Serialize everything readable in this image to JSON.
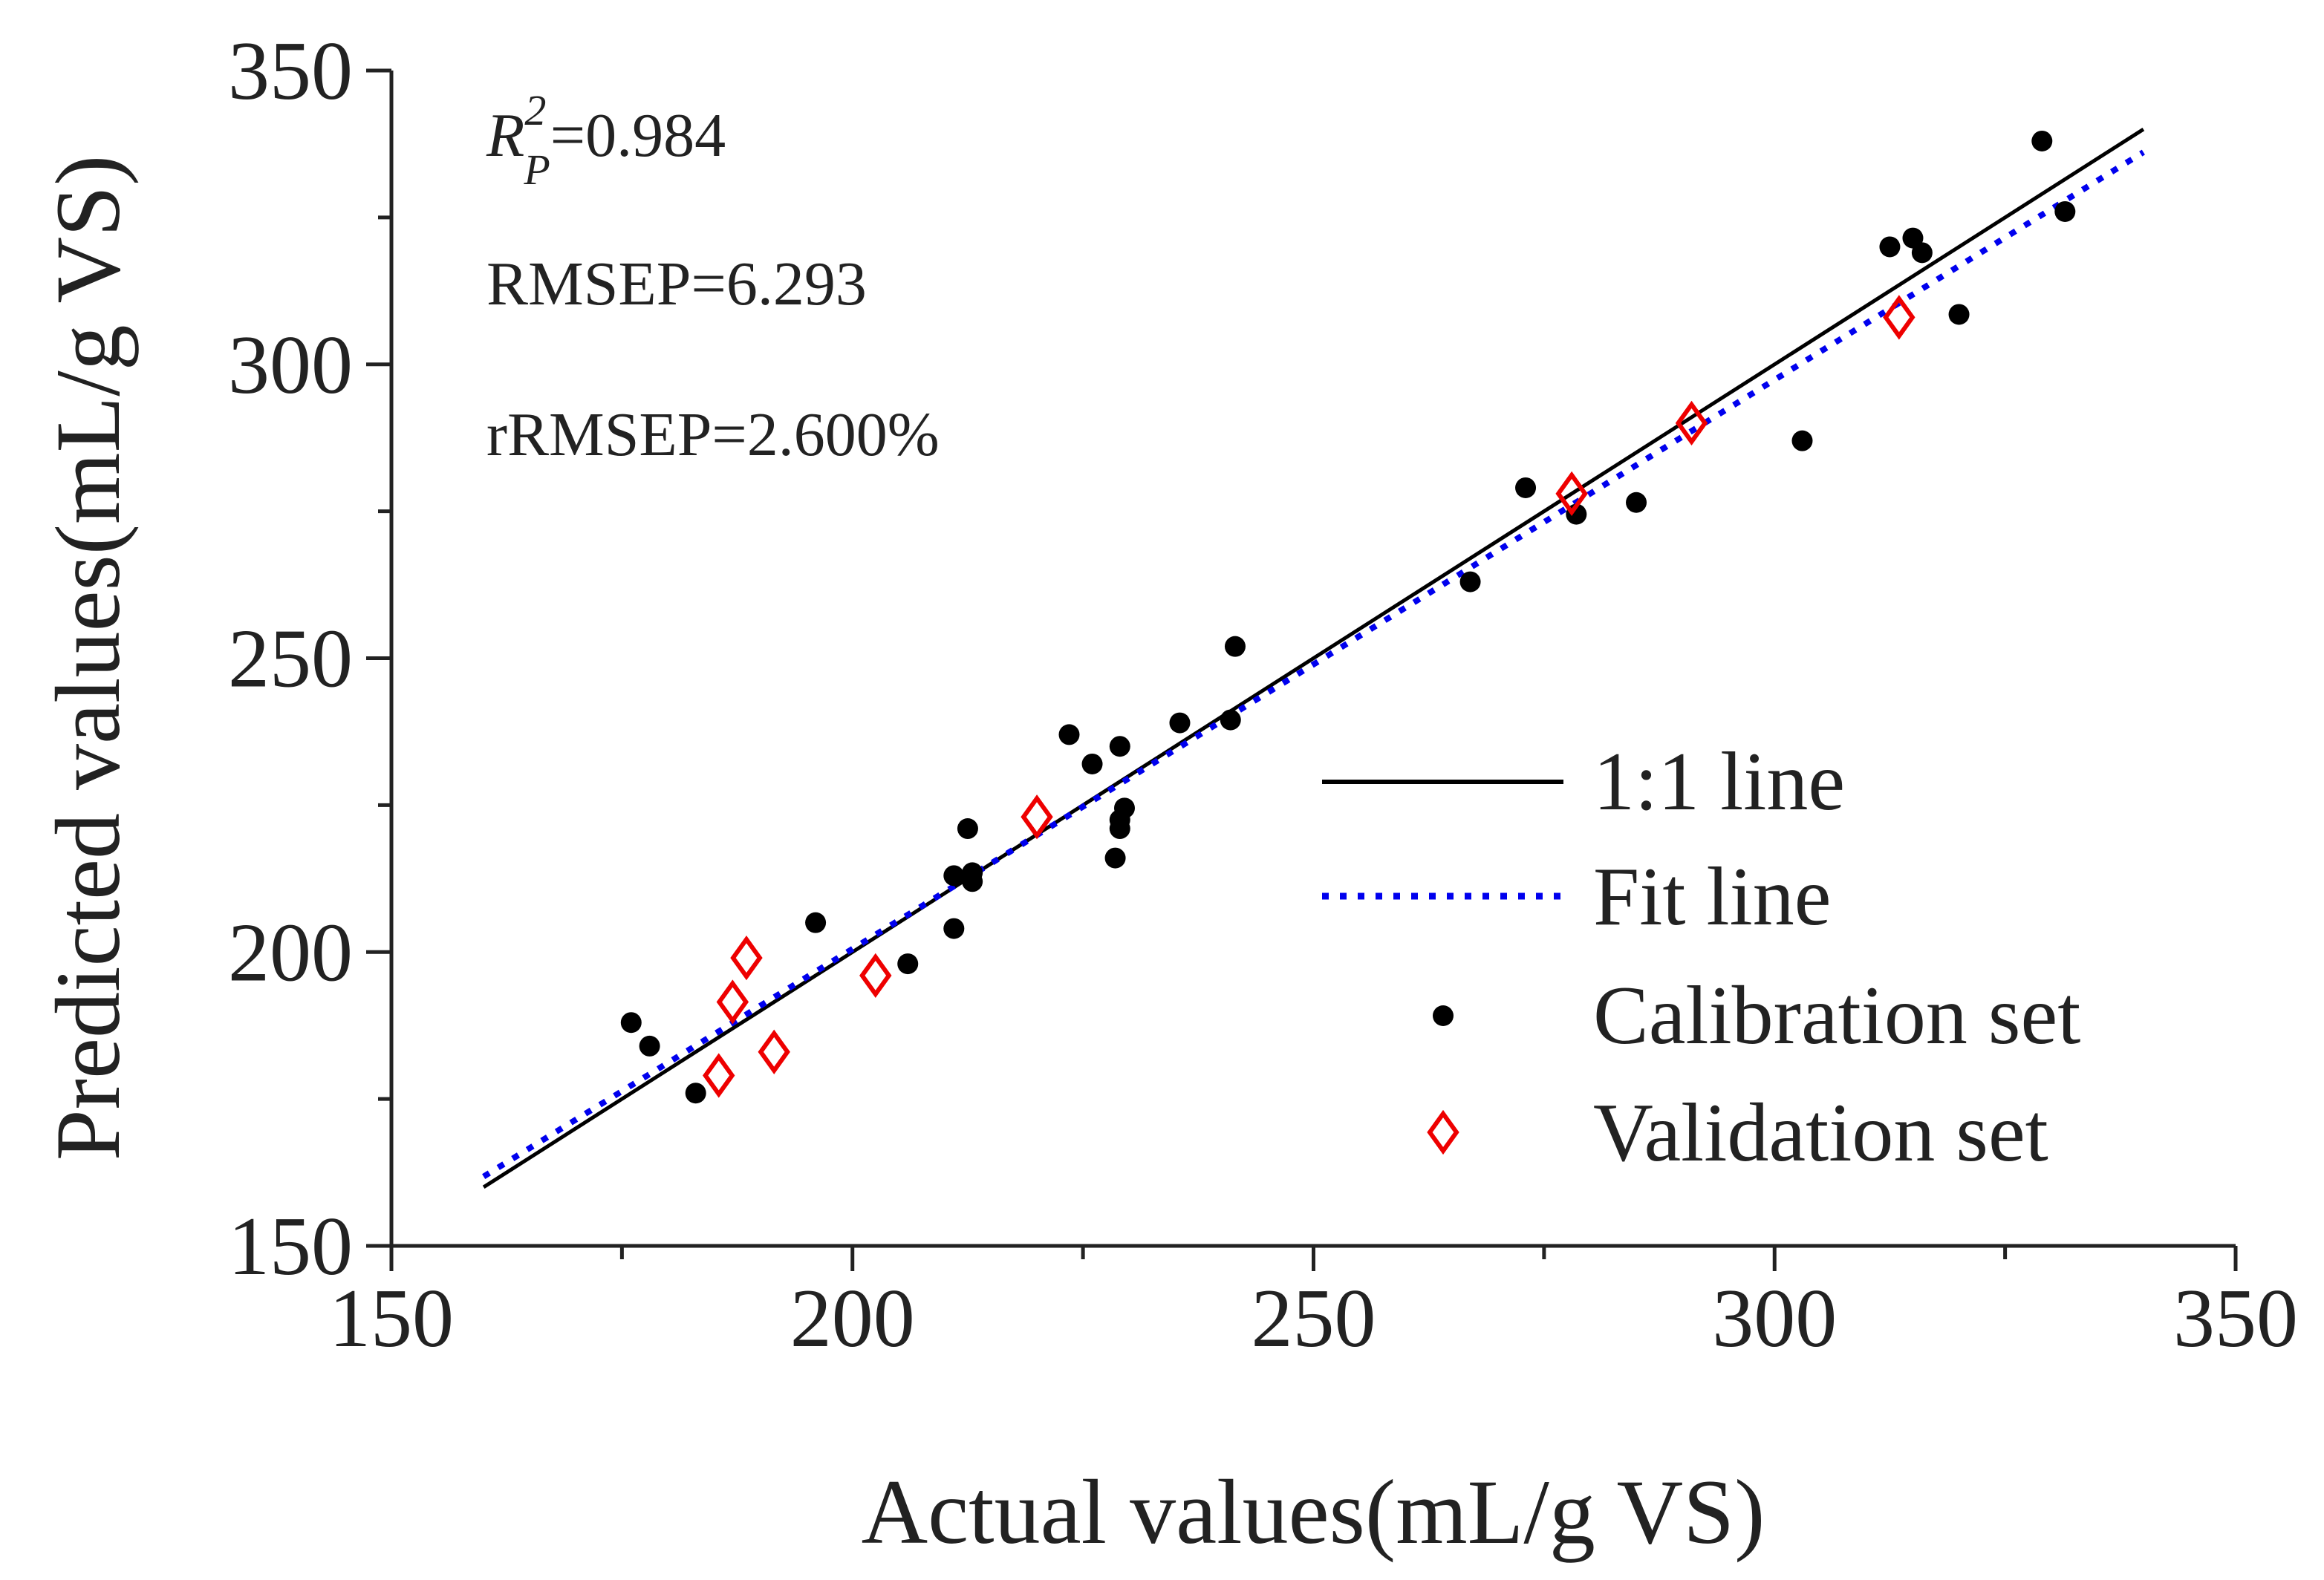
{
  "chart_data": {
    "type": "scatter",
    "xlabel": "Actual values(mL/g VS)",
    "ylabel": "Predicted  values(mL/g VS)",
    "xlim": [
      150,
      350
    ],
    "ylim": [
      150,
      350
    ],
    "x_ticks": [
      150,
      200,
      250,
      300,
      350
    ],
    "y_ticks": [
      150,
      200,
      250,
      300,
      350
    ],
    "grid": false,
    "legend_position": "right",
    "annotations": {
      "r2_symbol": "R",
      "r2_superscript": "2",
      "r2_subscript": "P",
      "r2_value": "=0.984",
      "rmsep": "RMSEP=6.293",
      "rrmsep": "rRMSEP=2.600%"
    },
    "legend": [
      {
        "label": "1:1 line",
        "type": "line",
        "color": "#000000",
        "style": "solid"
      },
      {
        "label": "Fit line",
        "type": "line",
        "color": "#0000ee",
        "style": "dotted"
      },
      {
        "label": "Calibration set",
        "type": "marker",
        "color": "#000000",
        "marker": "circle"
      },
      {
        "label": "Validation set",
        "type": "marker",
        "color": "#ee0000",
        "marker": "diamond"
      }
    ],
    "series": [
      {
        "name": "1:1 line",
        "type": "line",
        "color": "#000000",
        "x": [
          160,
          340
        ],
        "y": [
          160,
          340
        ]
      },
      {
        "name": "Fit line",
        "type": "line",
        "color": "#0000ee",
        "x": [
          160,
          340
        ],
        "y": [
          161.8,
          336.1
        ]
      },
      {
        "name": "Calibration set",
        "type": "scatter",
        "color": "#000000",
        "points": [
          [
            176,
            188
          ],
          [
            178,
            184
          ],
          [
            183,
            176
          ],
          [
            196,
            205
          ],
          [
            206,
            198
          ],
          [
            211,
            204
          ],
          [
            211,
            213
          ],
          [
            212.5,
            221
          ],
          [
            213,
            212
          ],
          [
            213,
            213.5
          ],
          [
            223.5,
            237
          ],
          [
            226,
            232
          ],
          [
            228.5,
            216
          ],
          [
            229,
            222.5
          ],
          [
            229,
            221
          ],
          [
            229,
            235
          ],
          [
            229.5,
            224.5
          ],
          [
            235.5,
            239
          ],
          [
            241,
            239.5
          ],
          [
            241.5,
            252
          ],
          [
            267,
            263
          ],
          [
            273,
            279
          ],
          [
            278.5,
            274.5
          ],
          [
            285,
            276.5
          ],
          [
            303,
            287
          ],
          [
            312.5,
            320
          ],
          [
            315,
            321.5
          ],
          [
            316,
            319
          ],
          [
            320,
            308.5
          ],
          [
            329,
            338
          ],
          [
            331.5,
            326
          ]
        ]
      },
      {
        "name": "Validation set",
        "type": "scatter",
        "color": "#ee0000",
        "points": [
          [
            185.5,
            179
          ],
          [
            187,
            191.5
          ],
          [
            188.5,
            199
          ],
          [
            191.5,
            183
          ],
          [
            202.5,
            196
          ],
          [
            220,
            223
          ],
          [
            278,
            278
          ],
          [
            291,
            290
          ],
          [
            313.5,
            308
          ]
        ]
      }
    ]
  }
}
